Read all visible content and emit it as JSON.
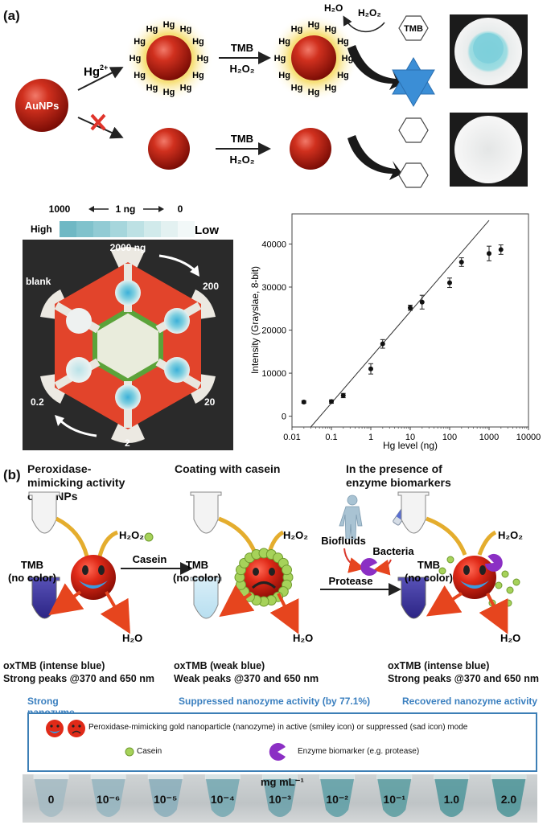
{
  "panel_a": {
    "letter": "(a)",
    "aunps_label": "AuNPs",
    "hg_ion_label": "Hg",
    "hg_ion_charge": "2+",
    "hg_atom": "Hg",
    "tmb_arrow_top": "TMB",
    "h2o2_arrow_top": "H₂O₂",
    "tmb_arrow_bottom": "TMB",
    "h2o2_arrow_bottom": "H₂O₂",
    "h2o_label": "H₂O",
    "h2o2_label": "H₂O₂",
    "tmb_hex_label": "TMB",
    "scale_high": "1000",
    "scale_mid": "1 ng",
    "scale_low": "0",
    "scale_word_high": "High",
    "scale_word_low": "Low",
    "chip_labels": {
      "top": "2000 ng",
      "right_top": "200",
      "right_bottom": "20",
      "bottom": "2",
      "left_bottom": "0.2",
      "left_top": "blank"
    }
  },
  "chart_data": {
    "type": "scatter",
    "title": "",
    "xlabel": "Hg level (ng)",
    "ylabel": "Intensity (Grayscale, 8-bit)",
    "ylabel_display": "Intensity (Grayslae, 8-bit)",
    "xscale": "log",
    "xlim": [
      0.01,
      10000
    ],
    "ylim": [
      -2500,
      47000
    ],
    "x_ticks": [
      "0.01",
      "0.1",
      "1",
      "10",
      "100",
      "1000",
      "10000"
    ],
    "y_ticks": [
      "0",
      "10000",
      "20000",
      "30000",
      "40000"
    ],
    "x": [
      0.02,
      0.1,
      0.2,
      1,
      2,
      10,
      20,
      100,
      200,
      1000,
      2000
    ],
    "y": [
      3300,
      3400,
      4800,
      11000,
      16800,
      25200,
      26500,
      31000,
      35800,
      37800,
      38700
    ],
    "err": [
      300,
      400,
      500,
      1200,
      1000,
      600,
      1600,
      1100,
      1000,
      1700,
      1100
    ],
    "fit_line": {
      "x": [
        0.03,
        1000
      ],
      "y": [
        -2500,
        45500
      ]
    }
  },
  "panel_b": {
    "letter": "(b)",
    "col1_title_l1": "Peroxidase-",
    "col1_title_l2": "mimicking activity",
    "col1_title_l3": "of AuNPs",
    "col2_title": "Coating with casein",
    "col3_title_l1": "In the presence of",
    "col3_title_l2": "enzyme biomarkers",
    "tmb_l1": "TMB",
    "tmb_l2": "(no color)",
    "h2o2": "H₂O₂",
    "h2o": "H₂O",
    "casein_arrow": "Casein",
    "protease_arrow": "Protease",
    "biofluids": "Biofluids",
    "bacteria": "Bacteria",
    "out1_l1": "oxTMB (intense blue)",
    "out1_l2": "Strong peaks @370 and 650 nm",
    "out2_l1": "oxTMB (weak blue)",
    "out2_l2": "Weak peaks @370 and 650 nm",
    "out3_l1": "oxTMB (intense blue)",
    "out3_l2": "Strong peaks @370 and 650 nm",
    "hdr1": "Strong nanozyme activity",
    "hdr2": "Suppressed nanozyme activity (by 77.1%)",
    "hdr3": "Recovered nanozyme activity",
    "legend_line1": "Peroxidase-mimicking gold nanoparticle (nanozyme) in active (smiley icon) or suppressed (sad icon) mode",
    "legend_casein": "Casein",
    "legend_enzyme": "Enzyme biomarker (e.g. protease)",
    "units": "mg mL⁻¹",
    "concentrations": [
      "0",
      "10⁻⁶",
      "10⁻⁵",
      "10⁻⁴",
      "10⁻³",
      "10⁻²",
      "10⁻¹",
      "1.0",
      "2.0"
    ]
  }
}
